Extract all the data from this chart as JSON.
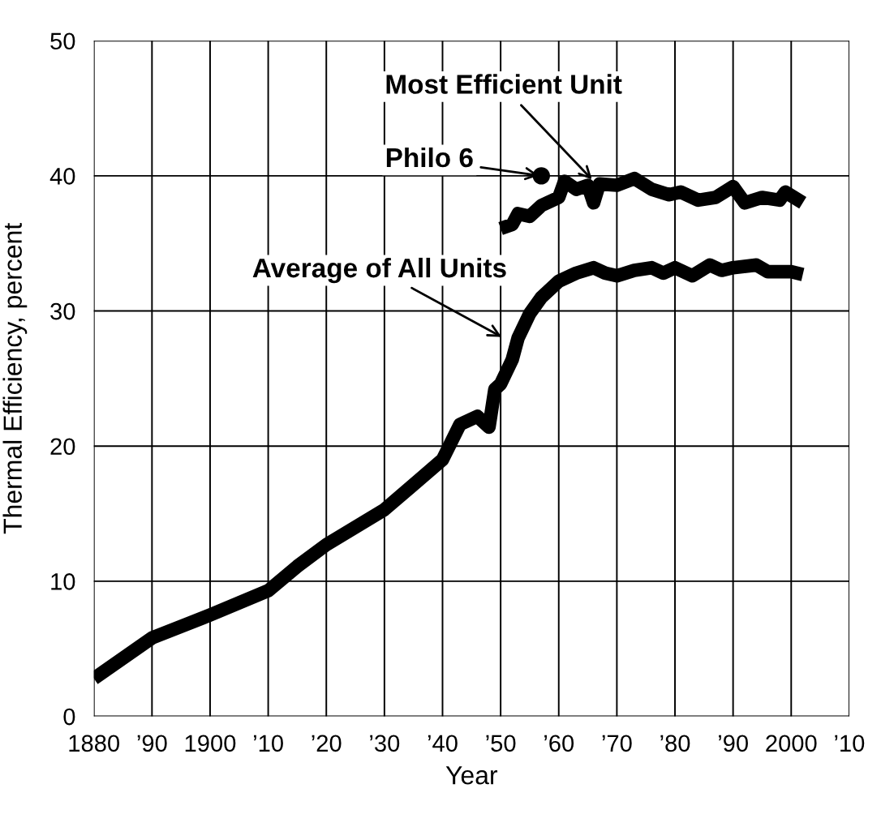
{
  "chart_data": {
    "type": "line",
    "xlabel": "Year",
    "ylabel": "Thermal Efficiency, percent",
    "xlim": [
      1880,
      2010
    ],
    "ylim": [
      0,
      50
    ],
    "xticks": [
      {
        "value": 1880,
        "label": "1880"
      },
      {
        "value": 1890,
        "label": "’90"
      },
      {
        "value": 1900,
        "label": "1900"
      },
      {
        "value": 1910,
        "label": "’10"
      },
      {
        "value": 1920,
        "label": "’20"
      },
      {
        "value": 1930,
        "label": "’30"
      },
      {
        "value": 1940,
        "label": "’40"
      },
      {
        "value": 1950,
        "label": "’50"
      },
      {
        "value": 1960,
        "label": "’60"
      },
      {
        "value": 1970,
        "label": "’70"
      },
      {
        "value": 1980,
        "label": "’80"
      },
      {
        "value": 1990,
        "label": "’90"
      },
      {
        "value": 2000,
        "label": "2000"
      },
      {
        "value": 2010,
        "label": "’10"
      }
    ],
    "yticks": [
      0,
      10,
      20,
      30,
      40,
      50
    ],
    "grid": true,
    "marker": "none",
    "line_style": "solid",
    "series": [
      {
        "color": "#000000",
        "x": [
          1880,
          1890,
          1900,
          1910,
          1915,
          1920,
          1930,
          1940,
          1943,
          1946,
          1948,
          1949,
          1950,
          1952,
          1953,
          1955,
          1957,
          1960,
          1963,
          1966,
          1968,
          1970,
          1973,
          1976,
          1978,
          1980,
          1983,
          1986,
          1988,
          1990,
          1994,
          1996,
          2000,
          2002
        ],
        "values": [
          2.8,
          5.8,
          7.5,
          9.3,
          11.1,
          12.7,
          15.3,
          19.0,
          21.6,
          22.2,
          21.4,
          24.2,
          24.6,
          26.4,
          28.0,
          29.8,
          31.0,
          32.2,
          32.8,
          33.2,
          32.8,
          32.6,
          33.0,
          33.2,
          32.8,
          33.2,
          32.6,
          33.4,
          33.0,
          33.2,
          33.4,
          32.9,
          32.9,
          32.7
        ]
      },
      {
        "color": "#000000",
        "x": [
          1950,
          1952,
          1953,
          1955,
          1957,
          1960,
          1961,
          1963,
          1965,
          1966,
          1967,
          1970,
          1973,
          1976,
          1979,
          1981,
          1984,
          1987,
          1990,
          1992,
          1995,
          1998,
          1999,
          2002
        ],
        "values": [
          36.1,
          36.4,
          37.2,
          37.0,
          37.8,
          38.4,
          39.6,
          39.0,
          39.3,
          38.0,
          39.4,
          39.3,
          39.8,
          39.0,
          38.6,
          38.8,
          38.2,
          38.4,
          39.2,
          38.0,
          38.4,
          38.2,
          38.8,
          38.0
        ]
      },
      {
        "type": "scatter",
        "marker": "circle",
        "color": "#000000",
        "x": [
          1957
        ],
        "values": [
          40
        ]
      }
    ],
    "annotations": [
      {
        "text": "Most Efficient Unit",
        "x": 1966,
        "y": 39.6
      },
      {
        "text": "Philo 6",
        "x": 1957,
        "y": 40
      },
      {
        "text": "Average of All Units",
        "x": 1950.5,
        "y": 28.0
      }
    ]
  }
}
